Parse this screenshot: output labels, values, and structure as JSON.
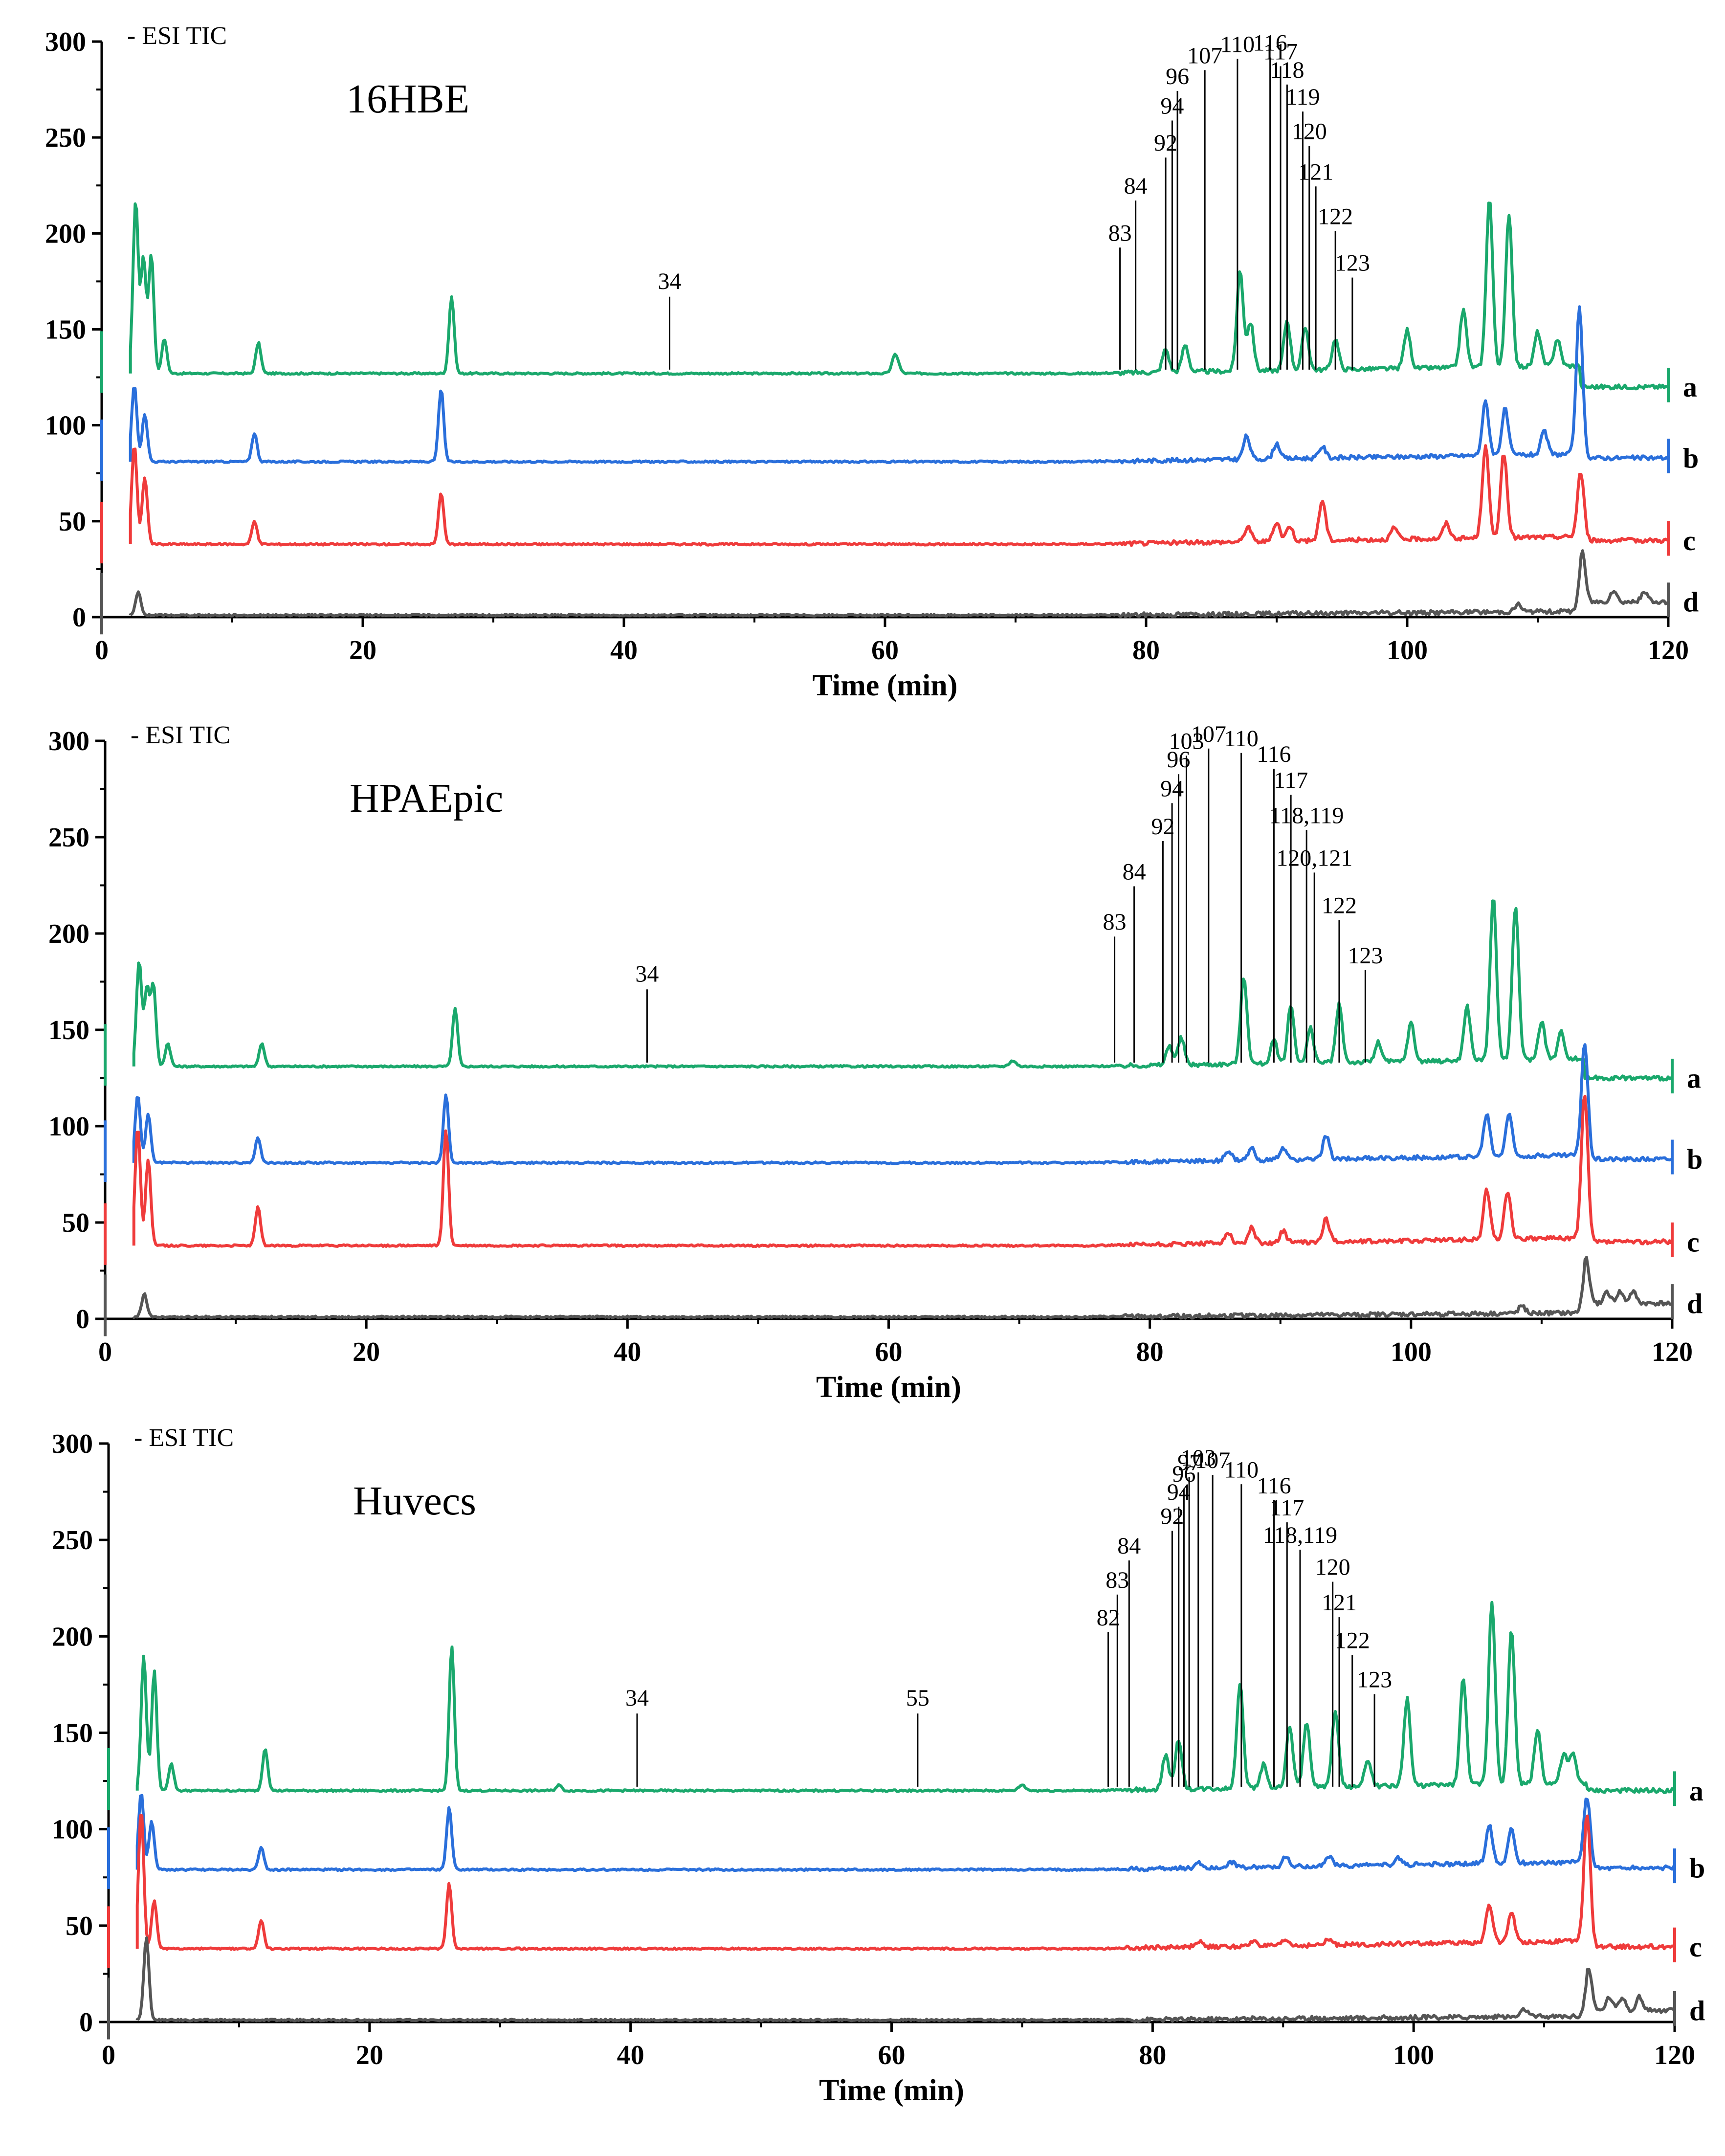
{
  "chart_data": [
    {
      "type": "line",
      "title": "16HBE",
      "mode_label": "- ESI  TIC",
      "xlabel": "Time (min)",
      "ylabel": "",
      "xlim": [
        0,
        120
      ],
      "ylim": [
        0,
        300
      ],
      "xticks": [
        0,
        20,
        40,
        60,
        80,
        100,
        120
      ],
      "yticks": [
        0,
        50,
        100,
        150,
        200,
        250,
        300
      ],
      "series": [
        {
          "name": "a",
          "color": "#1aa86c",
          "baseline": 127,
          "end": 120,
          "peaks": [
            [
              2.6,
              90
            ],
            [
              3.2,
              60
            ],
            [
              3.8,
              62
            ],
            [
              4.8,
              18
            ],
            [
              12,
              16
            ],
            [
              26.8,
              40
            ],
            [
              60.8,
              10
            ],
            [
              81.5,
              12
            ],
            [
              83,
              14
            ],
            [
              87.2,
              52
            ],
            [
              88,
              25
            ],
            [
              90.8,
              26
            ],
            [
              92.2,
              22
            ],
            [
              94.5,
              16
            ],
            [
              100,
              20
            ],
            [
              104.3,
              30
            ],
            [
              106.3,
              88
            ],
            [
              107.8,
              80
            ],
            [
              110,
              18
            ],
            [
              111.5,
              14
            ]
          ]
        },
        {
          "name": "b",
          "color": "#2a6fdb",
          "baseline": 81,
          "end": 83,
          "peaks": [
            [
              2.5,
              40
            ],
            [
              3.3,
              25
            ],
            [
              11.7,
              15
            ],
            [
              26,
              38
            ],
            [
              87.7,
              12
            ],
            [
              90,
              8
            ],
            [
              93.5,
              6
            ],
            [
              106,
              28
            ],
            [
              107.5,
              24
            ],
            [
              110.5,
              12
            ],
            [
              113.2,
              76
            ]
          ]
        },
        {
          "name": "c",
          "color": "#ef3b3b",
          "baseline": 38,
          "end": 40,
          "peaks": [
            [
              2.5,
              52
            ],
            [
              3.3,
              35
            ],
            [
              11.7,
              12
            ],
            [
              26,
              27
            ],
            [
              87.8,
              8
            ],
            [
              90,
              10
            ],
            [
              91,
              8
            ],
            [
              93.5,
              21
            ],
            [
              99,
              6
            ],
            [
              103,
              8
            ],
            [
              106,
              48
            ],
            [
              107.4,
              44
            ],
            [
              113.3,
              35
            ]
          ]
        },
        {
          "name": "d",
          "color": "#555555",
          "baseline": 1,
          "end": 8,
          "peaks": [
            [
              2.8,
              12
            ],
            [
              108.5,
              4
            ],
            [
              113.4,
              26
            ],
            [
              115.8,
              6
            ],
            [
              118.2,
              5
            ]
          ]
        }
      ],
      "annotations": [
        {
          "text": "34",
          "x": 43.5
        },
        {
          "text": "83",
          "x": 78
        },
        {
          "text": "84",
          "x": 79.2
        },
        {
          "text": "92",
          "x": 81.5
        },
        {
          "text": "94",
          "x": 82
        },
        {
          "text": "96",
          "x": 82.4
        },
        {
          "text": "107",
          "x": 84.5
        },
        {
          "text": "110",
          "x": 87
        },
        {
          "text": "116",
          "x": 89.5
        },
        {
          "text": "117",
          "x": 90.3
        },
        {
          "text": "118",
          "x": 90.8
        },
        {
          "text": "119",
          "x": 92
        },
        {
          "text": "120",
          "x": 92.5
        },
        {
          "text": "121",
          "x": 93
        },
        {
          "text": "122",
          "x": 94.5
        },
        {
          "text": "123",
          "x": 95.8
        }
      ],
      "trace_labels": [
        "a",
        "b",
        "c",
        "d"
      ]
    },
    {
      "type": "line",
      "title": "HPAEpic",
      "mode_label": "- ESI  TIC",
      "xlabel": "Time (min)",
      "ylabel": "",
      "xlim": [
        0,
        120
      ],
      "ylim": [
        0,
        300
      ],
      "xticks": [
        0,
        20,
        40,
        60,
        80,
        100,
        120
      ],
      "yticks": [
        0,
        50,
        100,
        150,
        200,
        250,
        300
      ],
      "series": [
        {
          "name": "a",
          "color": "#1aa86c",
          "baseline": 131,
          "end": 125,
          "peaks": [
            [
              2.6,
              55
            ],
            [
              3.2,
              40
            ],
            [
              3.7,
              42
            ],
            [
              4.8,
              12
            ],
            [
              12,
              12
            ],
            [
              26.8,
              30
            ],
            [
              69.5,
              3
            ],
            [
              81.5,
              10
            ],
            [
              82.4,
              14
            ],
            [
              87.2,
              45
            ],
            [
              89.5,
              12
            ],
            [
              90.8,
              30
            ],
            [
              92.3,
              18
            ],
            [
              94.5,
              30
            ],
            [
              97.5,
              10
            ],
            [
              100,
              20
            ],
            [
              104.3,
              28
            ],
            [
              106.3,
              84
            ],
            [
              108,
              80
            ],
            [
              110,
              20
            ],
            [
              111.5,
              14
            ]
          ]
        },
        {
          "name": "b",
          "color": "#2a6fdb",
          "baseline": 81,
          "end": 83,
          "peaks": [
            [
              2.5,
              35
            ],
            [
              3.3,
              25
            ],
            [
              11.7,
              13
            ],
            [
              26.1,
              35
            ],
            [
              86,
              5
            ],
            [
              87.8,
              6
            ],
            [
              90.2,
              6
            ],
            [
              93.5,
              12
            ],
            [
              105.8,
              22
            ],
            [
              107.5,
              22
            ],
            [
              113.3,
              60
            ]
          ]
        },
        {
          "name": "c",
          "color": "#ef3b3b",
          "baseline": 38,
          "end": 40,
          "peaks": [
            [
              2.5,
              62
            ],
            [
              3.3,
              45
            ],
            [
              11.7,
              20
            ],
            [
              26.1,
              60
            ],
            [
              86,
              6
            ],
            [
              87.8,
              8
            ],
            [
              90.2,
              6
            ],
            [
              93.5,
              12
            ],
            [
              105.8,
              26
            ],
            [
              107.4,
              25
            ],
            [
              113.3,
              76
            ]
          ]
        },
        {
          "name": "d",
          "color": "#555555",
          "baseline": 1,
          "end": 8,
          "peaks": [
            [
              3,
              12
            ],
            [
              108.5,
              4
            ],
            [
              113.4,
              24
            ],
            [
              115,
              6
            ],
            [
              116,
              6
            ],
            [
              117,
              6
            ]
          ]
        }
      ],
      "annotations": [
        {
          "text": "34",
          "x": 41.5
        },
        {
          "text": "83",
          "x": 77.3
        },
        {
          "text": "84",
          "x": 78.8
        },
        {
          "text": "92",
          "x": 81
        },
        {
          "text": "94",
          "x": 81.7
        },
        {
          "text": "96",
          "x": 82.2
        },
        {
          "text": "103",
          "x": 82.8
        },
        {
          "text": "107",
          "x": 84.5
        },
        {
          "text": "110",
          "x": 87
        },
        {
          "text": "116",
          "x": 89.5
        },
        {
          "text": "117",
          "x": 90.8
        },
        {
          "text": "118,119",
          "x": 92
        },
        {
          "text": "120,121",
          "x": 92.6
        },
        {
          "text": "122",
          "x": 94.5
        },
        {
          "text": "123",
          "x": 96.5
        }
      ],
      "trace_labels": [
        "a",
        "b",
        "c",
        "d"
      ]
    },
    {
      "type": "line",
      "title": "Huvecs",
      "mode_label": "- ESI  TIC",
      "xlabel": "Time (min)",
      "ylabel": "",
      "xlim": [
        0,
        120
      ],
      "ylim": [
        0,
        300
      ],
      "xticks": [
        0,
        20,
        40,
        60,
        80,
        100,
        120
      ],
      "yticks": [
        0,
        50,
        100,
        150,
        200,
        250,
        300
      ],
      "series": [
        {
          "name": "a",
          "color": "#1aa86c",
          "baseline": 120,
          "end": 120,
          "peaks": [
            [
              2.7,
              70
            ],
            [
              3.5,
              62
            ],
            [
              4.8,
              14
            ],
            [
              12,
              22
            ],
            [
              26.3,
              75
            ],
            [
              34.5,
              3
            ],
            [
              70,
              3
            ],
            [
              81,
              18
            ],
            [
              82,
              26
            ],
            [
              86.7,
              55
            ],
            [
              88.5,
              12
            ],
            [
              90.5,
              32
            ],
            [
              91.8,
              34
            ],
            [
              94,
              40
            ],
            [
              96.5,
              14
            ],
            [
              99.5,
              45
            ],
            [
              103.8,
              55
            ],
            [
              106,
              95
            ],
            [
              107.5,
              80
            ],
            [
              109.5,
              28
            ],
            [
              111.5,
              15
            ],
            [
              112.2,
              15
            ]
          ]
        },
        {
          "name": "b",
          "color": "#2a6fdb",
          "baseline": 79,
          "end": 80,
          "peaks": [
            [
              2.5,
              40
            ],
            [
              3.3,
              25
            ],
            [
              11.7,
              12
            ],
            [
              26.1,
              32
            ],
            [
              83.5,
              3
            ],
            [
              86,
              3
            ],
            [
              90.2,
              5
            ],
            [
              93.5,
              5
            ],
            [
              98.8,
              4
            ],
            [
              105.8,
              20
            ],
            [
              107.5,
              18
            ],
            [
              113.3,
              35
            ]
          ]
        },
        {
          "name": "c",
          "color": "#ef3b3b",
          "baseline": 38,
          "end": 39,
          "peaks": [
            [
              2.5,
              72
            ],
            [
              3.5,
              25
            ],
            [
              11.7,
              15
            ],
            [
              26.1,
              34
            ],
            [
              83.5,
              3
            ],
            [
              87.8,
              3
            ],
            [
              90.2,
              3
            ],
            [
              93.5,
              3
            ],
            [
              105.8,
              20
            ],
            [
              107.5,
              16
            ],
            [
              113.3,
              68
            ]
          ]
        },
        {
          "name": "d",
          "color": "#555555",
          "baseline": 1,
          "end": 6,
          "peaks": [
            [
              2.9,
              43
            ],
            [
              108.5,
              4
            ],
            [
              113.4,
              22
            ],
            [
              115,
              7
            ],
            [
              116,
              7
            ],
            [
              117.3,
              7
            ]
          ]
        }
      ],
      "annotations": [
        {
          "text": "34",
          "x": 40.5
        },
        {
          "text": "55",
          "x": 62
        },
        {
          "text": "82",
          "x": 76.6
        },
        {
          "text": "83",
          "x": 77.3
        },
        {
          "text": "84",
          "x": 78.2
        },
        {
          "text": "92",
          "x": 81.5
        },
        {
          "text": "94",
          "x": 82
        },
        {
          "text": "96",
          "x": 82.4
        },
        {
          "text": "97",
          "x": 82.8
        },
        {
          "text": "103",
          "x": 83.5
        },
        {
          "text": "107",
          "x": 84.6
        },
        {
          "text": "110",
          "x": 86.8
        },
        {
          "text": "116",
          "x": 89.3
        },
        {
          "text": "117",
          "x": 90.3
        },
        {
          "text": "118,119",
          "x": 91.3
        },
        {
          "text": "120",
          "x": 93.8
        },
        {
          "text": "121",
          "x": 94.3
        },
        {
          "text": "122",
          "x": 95.3
        },
        {
          "text": "123",
          "x": 97
        }
      ],
      "trace_labels": [
        "a",
        "b",
        "c",
        "d"
      ]
    }
  ]
}
